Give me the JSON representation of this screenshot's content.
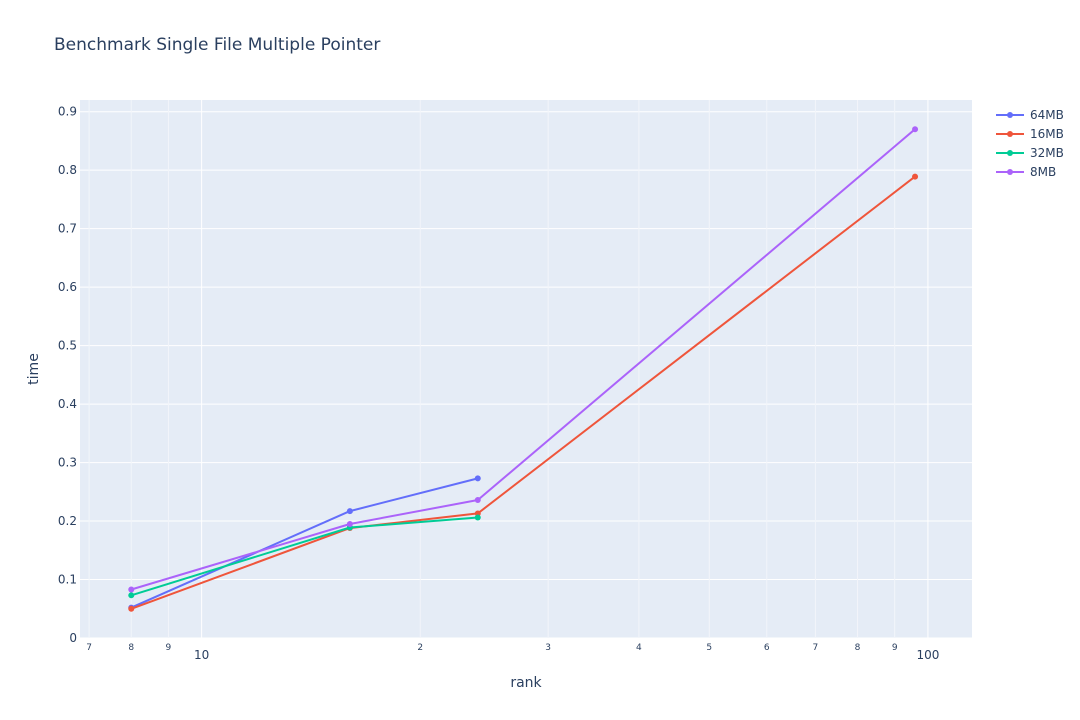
{
  "chart_data": {
    "type": "line",
    "title": "Benchmark Single File Multiple Pointer",
    "xlabel": "rank",
    "ylabel": "time",
    "x_scale": "log",
    "xlim": [
      6.8,
      115
    ],
    "ylim": [
      0,
      0.92
    ],
    "grid": true,
    "legend_position": "top-right",
    "y_ticks": [
      0,
      0.1,
      0.2,
      0.3,
      0.4,
      0.5,
      0.6,
      0.7,
      0.8,
      0.9
    ],
    "y_tick_labels": [
      "0",
      "0.1",
      "0.2",
      "0.3",
      "0.4",
      "0.5",
      "0.6",
      "0.7",
      "0.8",
      "0.9"
    ],
    "x_major_ticks": [
      10,
      100
    ],
    "x_major_tick_labels": [
      "10",
      "100"
    ],
    "x_minor_ticks": [
      7,
      8,
      9,
      20,
      30,
      40,
      50,
      60,
      70,
      80,
      90
    ],
    "x_minor_tick_labels": [
      "7",
      "8",
      "9",
      "2",
      "3",
      "4",
      "5",
      "6",
      "7",
      "8",
      "9"
    ],
    "series": [
      {
        "name": "64MB",
        "color": "#636efa",
        "x": [
          8,
          16,
          24
        ],
        "y": [
          0.052,
          0.217,
          0.273
        ]
      },
      {
        "name": "16MB",
        "color": "#ef553b",
        "x": [
          8,
          16,
          24,
          96
        ],
        "y": [
          0.05,
          0.188,
          0.213,
          0.789
        ]
      },
      {
        "name": "32MB",
        "color": "#00cc96",
        "x": [
          8,
          16,
          24
        ],
        "y": [
          0.073,
          0.189,
          0.206
        ]
      },
      {
        "name": "8MB",
        "color": "#ab63fa",
        "x": [
          8,
          16,
          24,
          96
        ],
        "y": [
          0.083,
          0.195,
          0.236,
          0.87
        ]
      }
    ]
  }
}
